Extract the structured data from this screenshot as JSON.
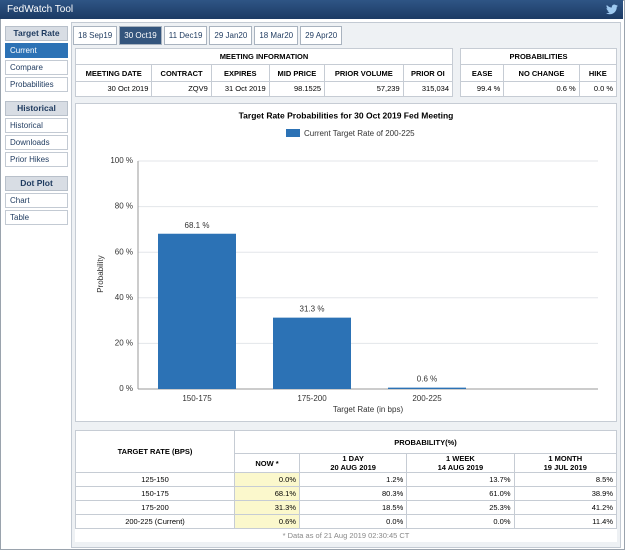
{
  "header": {
    "title": "FedWatch Tool"
  },
  "sidebar": [
    {
      "title": "Target Rate",
      "items": [
        "Current",
        "Compare",
        "Probabilities"
      ]
    },
    {
      "title": "Historical",
      "items": [
        "Historical",
        "Downloads",
        "Prior Hikes"
      ]
    },
    {
      "title": "Dot Plot",
      "items": [
        "Chart",
        "Table"
      ]
    }
  ],
  "tabs": [
    "18 Sep19",
    "30 Oct19",
    "11 Dec19",
    "29 Jan20",
    "18 Mar20",
    "29 Apr20"
  ],
  "meeting_info": {
    "title": "MEETING INFORMATION",
    "columns": [
      "MEETING DATE",
      "CONTRACT",
      "EXPIRES",
      "MID PRICE",
      "PRIOR VOLUME",
      "PRIOR OI"
    ],
    "values": [
      "30 Oct 2019",
      "ZQV9",
      "31 Oct 2019",
      "98.1525",
      "57,239",
      "315,034"
    ]
  },
  "probabilities": {
    "title": "PROBABILITIES",
    "columns": [
      "EASE",
      "NO CHANGE",
      "HIKE"
    ],
    "values": [
      "99.4 %",
      "0.6 %",
      "0.0 %"
    ]
  },
  "chart_data": {
    "type": "bar",
    "title": "Target Rate Probabilities for 30 Oct 2019 Fed Meeting",
    "x_label": "Target Rate (in bps)",
    "y_label": "Probability",
    "categories": [
      "150-175",
      "175-200",
      "200-225"
    ],
    "series": [
      {
        "name": "Current Target Rate of 200-225",
        "color": "#2c72b5",
        "values": [
          68.1,
          31.3,
          0.6
        ],
        "value_labels": [
          "68.1 %",
          "31.3 %",
          "0.6 %"
        ]
      }
    ],
    "ylim": [
      0,
      100
    ],
    "yticks": [
      {
        "value": 0,
        "label": "0 %"
      },
      {
        "value": 20,
        "label": "20 %"
      },
      {
        "value": 40,
        "label": "40 %"
      },
      {
        "value": 60,
        "label": "60 %"
      },
      {
        "value": 80,
        "label": "80 %"
      },
      {
        "value": 100,
        "label": "100 %"
      }
    ],
    "grid": true
  },
  "probability_table": {
    "rate_header": "TARGET RATE (BPS)",
    "probability_header": "PROBABILITY(%)",
    "columns": [
      {
        "label": "NOW *"
      },
      {
        "label": "1 DAY",
        "date": "20 AUG 2019"
      },
      {
        "label": "1 WEEK",
        "date": "14 AUG 2019"
      },
      {
        "label": "1 MONTH",
        "date": "19 JUL 2019"
      }
    ],
    "rows": [
      {
        "rate": "125-150",
        "values": [
          "0.0%",
          "1.2%",
          "13.7%",
          "8.5%"
        ]
      },
      {
        "rate": "150-175",
        "values": [
          "68.1%",
          "80.3%",
          "61.0%",
          "38.9%"
        ]
      },
      {
        "rate": "175-200",
        "values": [
          "31.3%",
          "18.5%",
          "25.3%",
          "41.2%"
        ]
      },
      {
        "rate": "200-225 (Current)",
        "values": [
          "0.6%",
          "0.0%",
          "0.0%",
          "11.4%"
        ]
      }
    ],
    "note": "* Data as of 21 Aug 2019 02:30:45 CT"
  }
}
